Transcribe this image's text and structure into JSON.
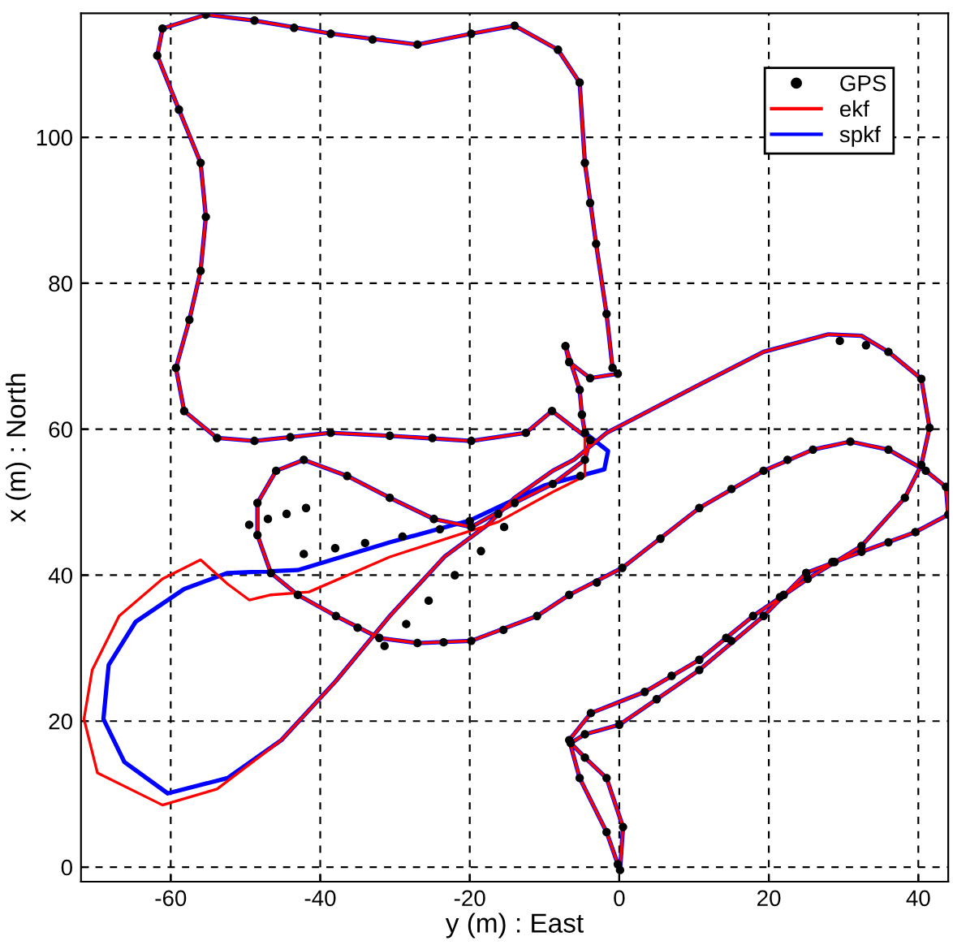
{
  "chart_data": {
    "type": "line",
    "xlabel": "y (m) : East",
    "ylabel": "x (m) : North",
    "xlim": [
      -72,
      44
    ],
    "ylim": [
      -2,
      117
    ],
    "xticks": [
      -60,
      -40,
      -20,
      0,
      20,
      40
    ],
    "yticks": [
      0,
      20,
      40,
      60,
      80,
      100
    ],
    "grid": true,
    "legend": "top right",
    "line_style": "solid",
    "series": [
      {
        "name": "GPS",
        "type": "scatter",
        "marker": "circle",
        "color": "#000000",
        "x": [
          0.1,
          0.5,
          -1.7,
          -4.6,
          -6.5,
          -4.6,
          0,
          5,
          10.7,
          15,
          19.3,
          22,
          25,
          28.5,
          32.4,
          36,
          39.6,
          44,
          43.7,
          41,
          36,
          30.9,
          25.9,
          22.5,
          19.3,
          15,
          10.7,
          5.5,
          0.4,
          -3,
          -6.7,
          -11,
          -15.5,
          -19.8,
          -23.5,
          -27,
          -32.1,
          -35,
          -37.9,
          -43,
          -46.6,
          -48.4,
          -48.4,
          -45.9,
          -42.2,
          -36.4,
          -30.7,
          -24.8,
          -19.8,
          -14,
          -8.9,
          -4.6,
          -3.9,
          -9,
          -12.5,
          -19.8,
          -25,
          -30.7,
          -38.6,
          -44,
          -48.8,
          -53.8,
          -58.2,
          -59.3,
          -57.5,
          -56,
          -55.3,
          -56,
          -58.9,
          -61.8,
          -61.1,
          -55.3,
          -48.8,
          -43.5,
          -38.6,
          -33,
          -27,
          -19.8,
          -14,
          -8.2,
          -5.3,
          -4.6,
          -3.9,
          -3.1,
          -1.7,
          -0.9,
          -0.2,
          -3.9,
          -6.7,
          -7.2,
          -5.3,
          -5,
          -4.6,
          -5.2,
          29.5,
          33,
          36,
          40.4,
          41.5,
          40.4,
          38.2,
          32.4,
          28.8,
          25.2,
          21.5,
          17.9,
          14.3,
          10.7,
          7,
          3.4,
          -3.8,
          -6.7,
          -5.3,
          -1.7,
          -0.2,
          -49.5,
          -47,
          -44.5,
          -41.9,
          -42.2,
          -38,
          -34,
          -29,
          -24,
          -20,
          -16.2,
          -31.4,
          -28.5,
          -25.5,
          -22,
          -18.5,
          -15.4
        ],
        "values": [
          -0.4,
          5.5,
          12.2,
          15,
          17,
          18.2,
          19.5,
          23,
          27,
          31,
          34.4,
          37.3,
          40.3,
          41.8,
          43.2,
          44.5,
          45.9,
          48.3,
          52.1,
          54.3,
          57.2,
          58.3,
          57.2,
          55.8,
          54.3,
          51.8,
          49.2,
          45,
          41,
          39,
          37.3,
          34.4,
          32.5,
          31,
          30.8,
          30.7,
          31.4,
          32.8,
          34.4,
          37.3,
          40.3,
          45.5,
          49.9,
          54.3,
          55.8,
          53.6,
          50.6,
          47.7,
          46.6,
          49.9,
          52.5,
          55.8,
          58.5,
          62.5,
          59.5,
          58.4,
          58.8,
          59.1,
          59.5,
          58.9,
          58.4,
          58.8,
          62.5,
          68.4,
          75,
          81.7,
          89.1,
          96.5,
          103.8,
          111.2,
          114.9,
          116.8,
          116,
          115,
          114.2,
          113.4,
          112.7,
          114.2,
          115.3,
          112,
          107.5,
          96.5,
          91,
          85.4,
          75.8,
          68.4,
          67.6,
          67,
          69.2,
          71.4,
          65.4,
          62,
          59.5,
          53.6,
          72.1,
          71.5,
          70.6,
          66.9,
          60.2,
          55.1,
          50.6,
          44,
          41.8,
          39.5,
          37,
          34.4,
          31.4,
          28.4,
          26.2,
          24,
          21.1,
          17.4,
          12.2,
          4.8,
          0.4,
          46.9,
          47.7,
          48.4,
          49.2,
          42.9,
          43.7,
          44.4,
          45.3,
          46.3,
          47.4,
          48.4,
          30.3,
          33.3,
          36.5,
          40,
          43.3,
          46.6
        ]
      },
      {
        "name": "ekf",
        "color": "#ff0000",
        "x": [
          0.1,
          0.5,
          -1.7,
          -4.6,
          -6.5,
          -4.6,
          0,
          10.7,
          19.3,
          25,
          32.4,
          39.6,
          44,
          43.7,
          41,
          36,
          30.9,
          25.9,
          19.3,
          10.7,
          0.4,
          -6.7,
          -11,
          -19.8,
          -27,
          -32.1,
          -37.9,
          -43,
          -46.6,
          -48.4,
          -48.4,
          -45.9,
          -42.2,
          -36.4,
          -30.7,
          -24.8,
          -19.8,
          -14,
          -8.9,
          -4.6,
          -3.9,
          -9,
          -12.5,
          -19.8,
          -30.7,
          -38.6,
          -48.8,
          -53.8,
          -58.2,
          -59.3,
          -57.5,
          -56,
          -55.3,
          -56,
          -58.9,
          -61.8,
          -61.1,
          -55.3,
          -48.8,
          -38.6,
          -27,
          -19.8,
          -14,
          -8.2,
          -5.3,
          -4.6,
          -3.1,
          -1.7,
          -0.9,
          -0.2,
          -3.9,
          -6.7,
          -7.2,
          -5.3,
          -5,
          -4.6,
          -4.6,
          -8.9,
          -16.2,
          -30.7,
          -41.5,
          -46.6,
          -49.5,
          -52.4,
          -56,
          -61.1,
          -66.9,
          -70.5,
          -71.6,
          -69.8,
          -61.1,
          -53.8,
          -45.2,
          -37.9,
          -30.7,
          -23.4,
          -17.6,
          -14,
          -8.9,
          -6.1,
          -1.7,
          10.7,
          19.3,
          28,
          32.4,
          36,
          40.4,
          41.5,
          40.4,
          38.2,
          32.4,
          25.2,
          17.9,
          10.7,
          3.4,
          -3.8,
          -6.7,
          -5.3,
          -1.7,
          -0.2
        ],
        "values": [
          -0.4,
          5.5,
          12.2,
          15,
          17,
          18.2,
          19.5,
          27,
          34.4,
          40.3,
          43.2,
          45.9,
          48.3,
          52.1,
          54.3,
          57.2,
          58.3,
          57.2,
          54.3,
          49.2,
          41,
          37.3,
          34.4,
          31,
          30.7,
          31.4,
          34.4,
          37.3,
          40.3,
          45.5,
          49.9,
          54.3,
          55.8,
          53.6,
          50.6,
          47.7,
          46.6,
          49.9,
          52.5,
          55.8,
          58.5,
          62.5,
          59.5,
          58.4,
          59.1,
          59.5,
          58.4,
          58.8,
          62.5,
          68.4,
          75,
          81.7,
          89.1,
          96.5,
          103.8,
          111.2,
          114.9,
          116.8,
          116,
          114.2,
          112.7,
          114.2,
          115.3,
          112,
          107.5,
          96.5,
          85.4,
          75.8,
          68.4,
          67.6,
          67,
          69.2,
          71.4,
          65.4,
          62,
          59.5,
          53.6,
          51.4,
          47.3,
          42.5,
          37.7,
          37.3,
          36.6,
          38.8,
          42.1,
          39.5,
          34.4,
          27,
          20.3,
          12.9,
          8.5,
          10.7,
          17.4,
          25.5,
          34.4,
          42.5,
          46.9,
          50.6,
          54.3,
          55.8,
          59.5,
          66.1,
          70.6,
          73,
          72.8,
          70.6,
          66.9,
          60.2,
          55.1,
          50.6,
          44,
          39.5,
          34.4,
          28.4,
          24,
          21.1,
          17.4,
          12.2,
          4.8,
          0.4
        ]
      },
      {
        "name": "spkf",
        "color": "#0000ff",
        "x": [
          0.1,
          0.5,
          -1.7,
          -4.6,
          -6.5,
          -4.6,
          0,
          10.7,
          19.3,
          25,
          32.4,
          39.6,
          44,
          43.7,
          41,
          36,
          30.9,
          25.9,
          19.3,
          10.7,
          0.4,
          -6.7,
          -11,
          -19.8,
          -27,
          -32.1,
          -37.9,
          -43,
          -46.6,
          -48.4,
          -48.4,
          -45.9,
          -42.2,
          -36.4,
          -30.7,
          -24.8,
          -19.8,
          -14,
          -8.9,
          -4.6,
          -3.9,
          -9,
          -12.5,
          -19.8,
          -30.7,
          -38.6,
          -48.8,
          -53.8,
          -58.2,
          -59.3,
          -57.5,
          -56,
          -55.3,
          -56,
          -58.9,
          -61.8,
          -61.1,
          -55.3,
          -48.8,
          -38.6,
          -27,
          -19.8,
          -14,
          -8.2,
          -5.3,
          -4.6,
          -3.1,
          -1.7,
          -0.9,
          -0.2,
          -3.9,
          -6.7,
          -7.2,
          -5.3,
          -5,
          -4.6,
          -1.5,
          -2,
          -10,
          -20,
          -30.7,
          -43,
          -52.4,
          -58.2,
          -64.7,
          -68.3,
          -69,
          -66.2,
          -60.4,
          -52.4,
          -45.2,
          -37.9,
          -30.7,
          -23.4,
          -17.6,
          -14,
          -8.9,
          -6.1,
          -1.7,
          10.7,
          19.3,
          28,
          32.4,
          36,
          40.4,
          41.5,
          40.4,
          38.2,
          32.4,
          25.2,
          17.9,
          10.7,
          3.4,
          -3.8,
          -6.7,
          -5.3,
          -1.7,
          -0.2
        ],
        "values": [
          -0.4,
          5.5,
          12.2,
          15,
          17,
          18.2,
          19.5,
          27,
          34.4,
          40.3,
          43.2,
          45.9,
          48.3,
          52.1,
          54.3,
          57.2,
          58.3,
          57.2,
          54.3,
          49.2,
          41,
          37.3,
          34.4,
          31,
          30.7,
          31.4,
          34.4,
          37.3,
          40.3,
          45.5,
          49.9,
          54.3,
          55.8,
          53.6,
          50.6,
          47.7,
          46.6,
          49.9,
          52.5,
          55.8,
          58.5,
          62.5,
          59.5,
          58.4,
          59.1,
          59.5,
          58.4,
          58.8,
          62.5,
          68.4,
          75,
          81.7,
          89.1,
          96.5,
          103.8,
          111.2,
          114.9,
          116.8,
          116,
          114.2,
          112.7,
          114.2,
          115.3,
          112,
          107.5,
          96.5,
          85.4,
          75.8,
          68.4,
          67.6,
          67,
          69.2,
          71.4,
          65.4,
          62,
          59.5,
          57,
          54.5,
          52.3,
          47.5,
          44.5,
          40.7,
          40.3,
          38.1,
          33.6,
          27.7,
          20.3,
          14.4,
          10.1,
          12.2,
          17.4,
          25.5,
          34.4,
          42.5,
          46.9,
          50.6,
          54.3,
          55.8,
          59.5,
          66.1,
          70.6,
          73,
          72.8,
          70.6,
          66.9,
          60.2,
          55.1,
          50.6,
          44,
          39.5,
          34.4,
          28.4,
          24,
          21.1,
          17.4,
          12.2,
          4.8,
          0.4
        ]
      }
    ]
  }
}
